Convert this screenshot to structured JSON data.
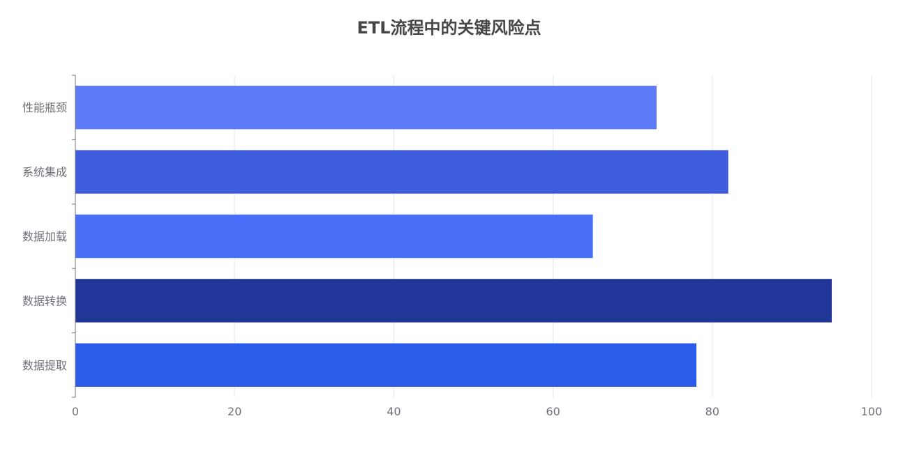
{
  "chart_data": {
    "type": "bar",
    "orientation": "horizontal",
    "title": "ETL流程中的关键风险点",
    "xlabel": "",
    "ylabel": "",
    "categories": [
      "数据提取",
      "数据转换",
      "数据加载",
      "系统集成",
      "性能瓶颈"
    ],
    "values": [
      78,
      95,
      65,
      82,
      73
    ],
    "colors": [
      "#2c5bea",
      "#203799",
      "#4a6ff7",
      "#3e5cdb",
      "#5e7cf8"
    ],
    "xlim": [
      0,
      100
    ],
    "x_ticks": [
      0,
      20,
      40,
      60,
      80,
      100
    ],
    "grid": "vertical",
    "legend": "none"
  }
}
